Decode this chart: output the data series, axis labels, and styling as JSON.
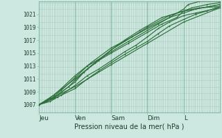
{
  "background_color": "#cce8e0",
  "plot_bg_color": "#cce8e0",
  "grid_color_minor": "#aaccbb",
  "grid_color_major": "#88bbaa",
  "line_color": "#2d6e3a",
  "ylabel_ticks": [
    1007,
    1009,
    1011,
    1013,
    1015,
    1017,
    1019,
    1021
  ],
  "ylim": [
    1005.8,
    1023.0
  ],
  "xlim": [
    0,
    4.85
  ],
  "x_day_positions": [
    0.0,
    0.97,
    1.94,
    2.91,
    3.88
  ],
  "x_day_labels": [
    "Jeu",
    "Ven",
    "Sam",
    "Dim",
    "L"
  ],
  "xlabel": "Pression niveau de la mer( hPa )",
  "lines": [
    {
      "x": [
        0.0,
        0.97,
        1.94,
        2.91,
        3.88,
        4.85
      ],
      "y": [
        1007.0,
        1009.8,
        1013.2,
        1016.5,
        1019.8,
        1022.0
      ]
    },
    {
      "x": [
        0.0,
        0.5,
        0.97,
        1.3,
        1.6,
        1.94,
        2.3,
        2.6,
        2.91,
        3.2,
        3.5,
        3.88,
        4.2,
        4.5,
        4.85
      ],
      "y": [
        1007.0,
        1008.2,
        1009.5,
        1011.0,
        1012.2,
        1013.5,
        1014.8,
        1015.8,
        1016.8,
        1018.0,
        1019.2,
        1020.2,
        1021.0,
        1021.5,
        1022.2
      ]
    },
    {
      "x": [
        0.0,
        0.3,
        0.6,
        0.97,
        1.3,
        1.6,
        1.94,
        2.3,
        2.6,
        2.91,
        3.2,
        3.5,
        3.88,
        4.2,
        4.85
      ],
      "y": [
        1007.0,
        1007.5,
        1008.5,
        1010.0,
        1011.5,
        1012.5,
        1013.8,
        1015.2,
        1016.2,
        1017.5,
        1018.8,
        1019.8,
        1020.8,
        1021.2,
        1022.0
      ]
    },
    {
      "x": [
        0.0,
        0.4,
        0.8,
        0.97,
        1.2,
        1.5,
        1.94,
        2.4,
        2.91,
        3.3,
        3.7,
        3.88,
        4.1,
        4.5,
        4.85
      ],
      "y": [
        1007.0,
        1008.0,
        1009.8,
        1010.5,
        1012.0,
        1013.5,
        1015.0,
        1016.5,
        1018.2,
        1019.5,
        1020.5,
        1021.5,
        1022.0,
        1022.5,
        1022.8
      ]
    },
    {
      "x": [
        0.0,
        0.3,
        0.6,
        0.97,
        1.3,
        1.94,
        2.4,
        2.91,
        3.2,
        3.5,
        3.88,
        4.0,
        4.3,
        4.85
      ],
      "y": [
        1007.0,
        1007.8,
        1009.2,
        1011.2,
        1013.0,
        1015.2,
        1016.8,
        1018.5,
        1019.5,
        1020.5,
        1021.8,
        1022.5,
        1023.0,
        1023.0
      ]
    },
    {
      "x": [
        0.0,
        0.2,
        0.5,
        0.8,
        0.97,
        1.3,
        1.6,
        1.94,
        2.3,
        2.7,
        2.91,
        3.3,
        3.88,
        4.3,
        4.85
      ],
      "y": [
        1007.0,
        1007.5,
        1008.5,
        1009.8,
        1010.8,
        1012.5,
        1013.8,
        1015.5,
        1017.0,
        1018.5,
        1019.2,
        1020.5,
        1021.5,
        1022.0,
        1022.2
      ]
    },
    {
      "x": [
        0.0,
        0.3,
        0.6,
        0.97,
        1.4,
        1.94,
        2.5,
        2.91,
        3.5,
        3.88,
        4.2,
        4.85
      ],
      "y": [
        1007.0,
        1008.0,
        1009.5,
        1011.5,
        1013.5,
        1015.8,
        1017.5,
        1018.8,
        1020.5,
        1021.2,
        1021.8,
        1022.5
      ]
    },
    {
      "x": [
        0.0,
        0.4,
        0.97,
        1.5,
        1.94,
        2.5,
        2.91,
        3.5,
        3.88,
        4.85
      ],
      "y": [
        1007.0,
        1008.5,
        1011.0,
        1013.5,
        1015.5,
        1017.5,
        1019.0,
        1020.8,
        1021.5,
        1022.5
      ]
    }
  ]
}
